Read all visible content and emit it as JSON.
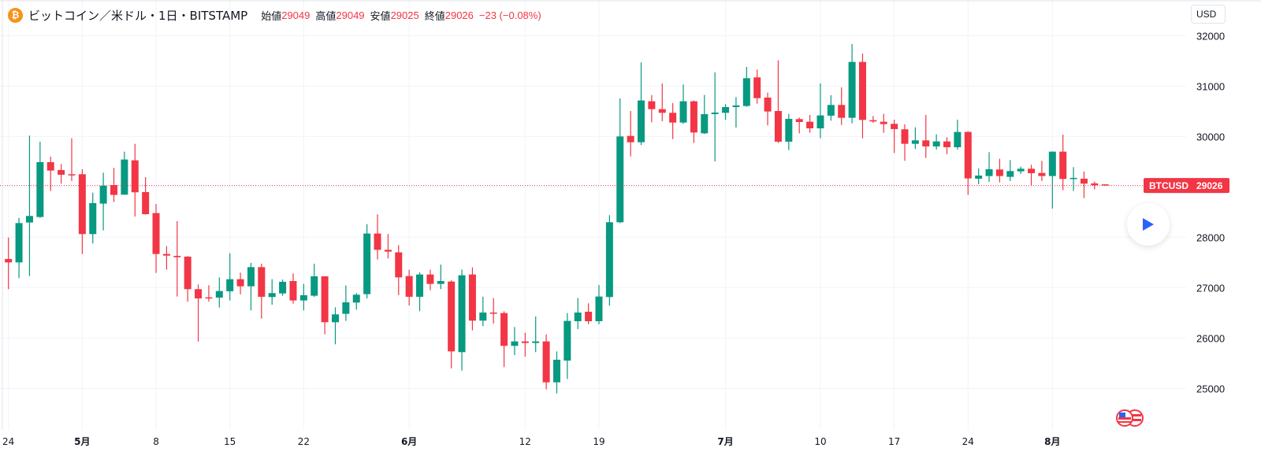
{
  "header": {
    "coin_icon": "bitcoin-icon",
    "coin_color": "#f7931a",
    "title": "ビットコイン／米ドル・1日・BITSTAMP",
    "open_label": "始値",
    "open": "29049",
    "high_label": "高値",
    "high": "29049",
    "low_label": "安値",
    "low": "29025",
    "close_label": "終値",
    "close": "29026",
    "change": "−23 (−0.08%)"
  },
  "currency_button": "USD",
  "price_tag": {
    "symbol": "BTCUSD",
    "price": "29026",
    "value": 29026,
    "color": "#f23645"
  },
  "play_button_icon": "play-icon",
  "events_icon": "us-flag-icon",
  "colors": {
    "up": "#089981",
    "down": "#f23645",
    "accent": "#2962ff"
  },
  "chart_data": {
    "type": "candlestick",
    "ylim": [
      24000,
      32300
    ],
    "grid": true,
    "y_ticks": [
      "25000",
      "26000",
      "27000",
      "28000",
      "29000",
      "30000",
      "31000",
      "32000"
    ],
    "x_ticks": [
      {
        "label": "24",
        "date": "4/24",
        "month": false
      },
      {
        "label": "5月",
        "date": "5/1",
        "month": true
      },
      {
        "label": "8",
        "date": "5/8",
        "month": false
      },
      {
        "label": "15",
        "date": "5/15",
        "month": false
      },
      {
        "label": "22",
        "date": "5/22",
        "month": false
      },
      {
        "label": "6月",
        "date": "6/1",
        "month": true
      },
      {
        "label": "12",
        "date": "6/12",
        "month": false
      },
      {
        "label": "19",
        "date": "6/19",
        "month": false
      },
      {
        "label": "7月",
        "date": "7/1",
        "month": true
      },
      {
        "label": "10",
        "date": "7/10",
        "month": false
      },
      {
        "label": "17",
        "date": "7/17",
        "month": false
      },
      {
        "label": "24",
        "date": "7/24",
        "month": false
      },
      {
        "label": "8月",
        "date": "8/1",
        "month": true
      }
    ],
    "columns": [
      "date",
      "open",
      "high",
      "low",
      "close"
    ],
    "candles": [
      [
        "4/24",
        27568,
        27995,
        26969,
        27500
      ],
      [
        "4/25",
        27500,
        28385,
        27187,
        28281
      ],
      [
        "4/26",
        28292,
        30016,
        27229,
        28422
      ],
      [
        "4/27",
        28401,
        29896,
        28385,
        29490
      ],
      [
        "4/28",
        29490,
        29599,
        28917,
        29323
      ],
      [
        "4/29",
        29333,
        29453,
        29063,
        29240
      ],
      [
        "4/30",
        29250,
        29964,
        29115,
        29230
      ],
      [
        "5/1",
        29250,
        29349,
        27667,
        28062
      ],
      [
        "5/2",
        28062,
        28885,
        27875,
        28677
      ],
      [
        "5/3",
        28667,
        29281,
        28135,
        29021
      ],
      [
        "5/4",
        29036,
        29375,
        28698,
        28839
      ],
      [
        "5/5",
        28844,
        29698,
        28844,
        29542
      ],
      [
        "5/6",
        29526,
        29854,
        28411,
        28891
      ],
      [
        "5/7",
        28896,
        29193,
        28448,
        28458
      ],
      [
        "5/8",
        28479,
        28661,
        27292,
        27667
      ],
      [
        "5/9",
        27667,
        27823,
        27354,
        27635
      ],
      [
        "5/10",
        27630,
        28318,
        26823,
        27604
      ],
      [
        "5/11",
        27615,
        27625,
        26719,
        26969
      ],
      [
        "5/12",
        26969,
        27063,
        25927,
        26786
      ],
      [
        "5/13",
        26807,
        27047,
        26719,
        26786
      ],
      [
        "5/14",
        26802,
        27203,
        26604,
        26932
      ],
      [
        "5/15",
        26927,
        27682,
        26745,
        27167
      ],
      [
        "5/16",
        27167,
        27297,
        26865,
        27026
      ],
      [
        "5/17",
        27026,
        27490,
        26547,
        27406
      ],
      [
        "5/18",
        27406,
        27474,
        26385,
        26818
      ],
      [
        "5/19",
        26813,
        27167,
        26661,
        26891
      ],
      [
        "5/20",
        26885,
        27161,
        26839,
        27115
      ],
      [
        "5/21",
        27130,
        27281,
        26682,
        26745
      ],
      [
        "5/22",
        26745,
        27073,
        26547,
        26849
      ],
      [
        "5/23",
        26839,
        27474,
        26813,
        27224
      ],
      [
        "5/24",
        27224,
        27224,
        26073,
        26313
      ],
      [
        "5/25",
        26313,
        26609,
        25875,
        26469
      ],
      [
        "5/26",
        26479,
        27042,
        26339,
        26708
      ],
      [
        "5/27",
        26703,
        26891,
        26563,
        26859
      ],
      [
        "5/28",
        26870,
        28260,
        26786,
        28073
      ],
      [
        "5/29",
        28073,
        28453,
        27557,
        27750
      ],
      [
        "5/30",
        27750,
        28063,
        27578,
        27714
      ],
      [
        "5/31",
        27700,
        27844,
        26849,
        27203
      ],
      [
        "6/1",
        27229,
        27354,
        26646,
        26818
      ],
      [
        "6/2",
        26818,
        27302,
        26531,
        27260
      ],
      [
        "6/3",
        27260,
        27354,
        26948,
        27073
      ],
      [
        "6/4",
        27073,
        27458,
        26969,
        27130
      ],
      [
        "6/5",
        27120,
        27146,
        25396,
        25734
      ],
      [
        "6/6",
        25719,
        27359,
        25354,
        27245
      ],
      [
        "6/7",
        27260,
        27401,
        26151,
        26344
      ],
      [
        "6/8",
        26344,
        26818,
        26234,
        26505
      ],
      [
        "6/9",
        26505,
        26792,
        26287,
        26484
      ],
      [
        "6/10",
        26495,
        26531,
        25422,
        25844
      ],
      [
        "6/11",
        25844,
        26219,
        25661,
        25932
      ],
      [
        "6/12",
        25932,
        26104,
        25630,
        25901
      ],
      [
        "6/13",
        25901,
        26427,
        25719,
        25932
      ],
      [
        "6/14",
        25932,
        26073,
        24980,
        25120
      ],
      [
        "6/15",
        25120,
        25734,
        24900,
        25568
      ],
      [
        "6/16",
        25552,
        26495,
        25188,
        26339
      ],
      [
        "6/17",
        26333,
        26792,
        26177,
        26505
      ],
      [
        "6/18",
        26521,
        26688,
        26271,
        26333
      ],
      [
        "6/19",
        26333,
        27052,
        26271,
        26823
      ],
      [
        "6/20",
        26813,
        28438,
        26641,
        28297
      ],
      [
        "6/21",
        28297,
        30755,
        28281,
        30000
      ],
      [
        "6/22",
        30010,
        30505,
        29604,
        29885
      ],
      [
        "6/23",
        29885,
        31469,
        29828,
        30714
      ],
      [
        "6/24",
        30698,
        30823,
        30281,
        30542
      ],
      [
        "6/25",
        30542,
        31052,
        30302,
        30469
      ],
      [
        "6/26",
        30469,
        30661,
        29948,
        30276
      ],
      [
        "6/27",
        30276,
        31031,
        30250,
        30698
      ],
      [
        "6/28",
        30698,
        30714,
        29870,
        30078
      ],
      [
        "6/29",
        30062,
        30823,
        30047,
        30443
      ],
      [
        "6/30",
        30443,
        31271,
        29505,
        30474
      ],
      [
        "7/1",
        30469,
        30641,
        30328,
        30583
      ],
      [
        "7/2",
        30583,
        30781,
        30177,
        30615
      ],
      [
        "7/3",
        30604,
        31380,
        30589,
        31156
      ],
      [
        "7/4",
        31172,
        31328,
        30651,
        30760
      ],
      [
        "7/5",
        30771,
        30870,
        30219,
        30495
      ],
      [
        "7/6",
        30505,
        31510,
        29870,
        29896
      ],
      [
        "7/7",
        29896,
        30448,
        29729,
        30349
      ],
      [
        "7/8",
        30344,
        30375,
        30062,
        30286
      ],
      [
        "7/9",
        30292,
        30427,
        30073,
        30161
      ],
      [
        "7/10",
        30161,
        31052,
        29964,
        30417
      ],
      [
        "7/11",
        30412,
        30818,
        30312,
        30625
      ],
      [
        "7/12",
        30625,
        30974,
        30229,
        30370
      ],
      [
        "7/13",
        30370,
        31833,
        30260,
        31479
      ],
      [
        "7/14",
        31479,
        31646,
        29964,
        30328
      ],
      [
        "7/15",
        30323,
        30406,
        30271,
        30297
      ],
      [
        "7/16",
        30292,
        30448,
        30073,
        30245
      ],
      [
        "7/17",
        30250,
        30333,
        29672,
        30146
      ],
      [
        "7/18",
        30141,
        30240,
        29516,
        29854
      ],
      [
        "7/19",
        29854,
        30182,
        29755,
        29922
      ],
      [
        "7/20",
        29922,
        30427,
        29573,
        29802
      ],
      [
        "7/21",
        29802,
        30042,
        29740,
        29901
      ],
      [
        "7/22",
        29901,
        29984,
        29646,
        29786
      ],
      [
        "7/23",
        29786,
        30333,
        29740,
        30089
      ],
      [
        "7/24",
        30089,
        30104,
        28839,
        29167
      ],
      [
        "7/25",
        29161,
        29365,
        29052,
        29224
      ],
      [
        "7/26",
        29214,
        29688,
        29099,
        29349
      ],
      [
        "7/27",
        29344,
        29557,
        29089,
        29214
      ],
      [
        "7/28",
        29198,
        29531,
        29115,
        29313
      ],
      [
        "7/29",
        29307,
        29401,
        29255,
        29359
      ],
      [
        "7/30",
        29359,
        29438,
        29031,
        29271
      ],
      [
        "7/31",
        29276,
        29516,
        29115,
        29214
      ],
      [
        "8/1",
        29214,
        29703,
        28568,
        29698
      ],
      [
        "8/2",
        29698,
        30036,
        28932,
        29156
      ],
      [
        "8/3",
        29167,
        29391,
        28917,
        29177
      ],
      [
        "8/4",
        29161,
        29302,
        28776,
        29063
      ],
      [
        "8/5",
        29068,
        29104,
        28948,
        29031
      ],
      [
        "8/6",
        29049,
        29049,
        29025,
        29026
      ]
    ]
  }
}
